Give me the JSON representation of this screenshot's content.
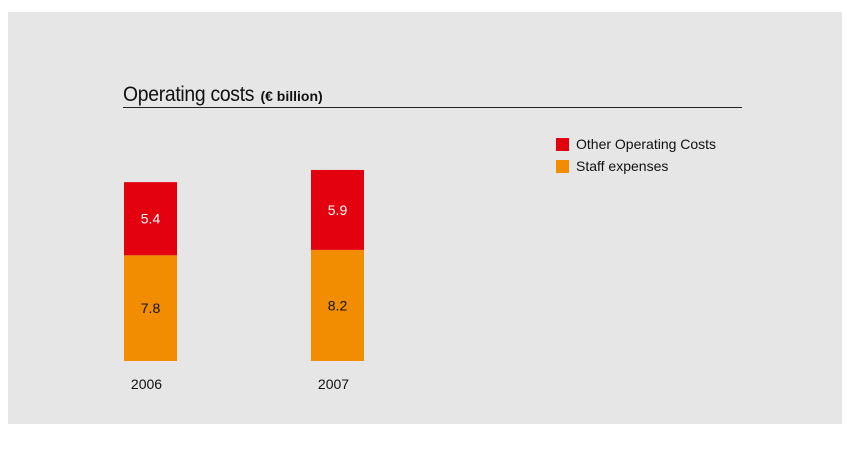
{
  "colors": {
    "panel": "#e6e6e6",
    "other": "#e3000f",
    "staff": "#f28c00",
    "text": "#111111"
  },
  "chart_data": {
    "type": "bar",
    "stacked": true,
    "title": "Operating costs",
    "unit": "(€ billion)",
    "categories": [
      "2006",
      "2007"
    ],
    "series": [
      {
        "name": "Staff expenses",
        "values": [
          7.8,
          8.2
        ],
        "color": "#f28c00",
        "label_color": "#111111"
      },
      {
        "name": "Other Operating Costs",
        "values": [
          5.4,
          5.9
        ],
        "color": "#e3000f",
        "label_color": "#ffffff"
      }
    ],
    "legend": [
      "Other Operating Costs",
      "Staff expenses"
    ],
    "legend_position": "top-right",
    "grid": false,
    "ylim": [
      0,
      15
    ]
  }
}
